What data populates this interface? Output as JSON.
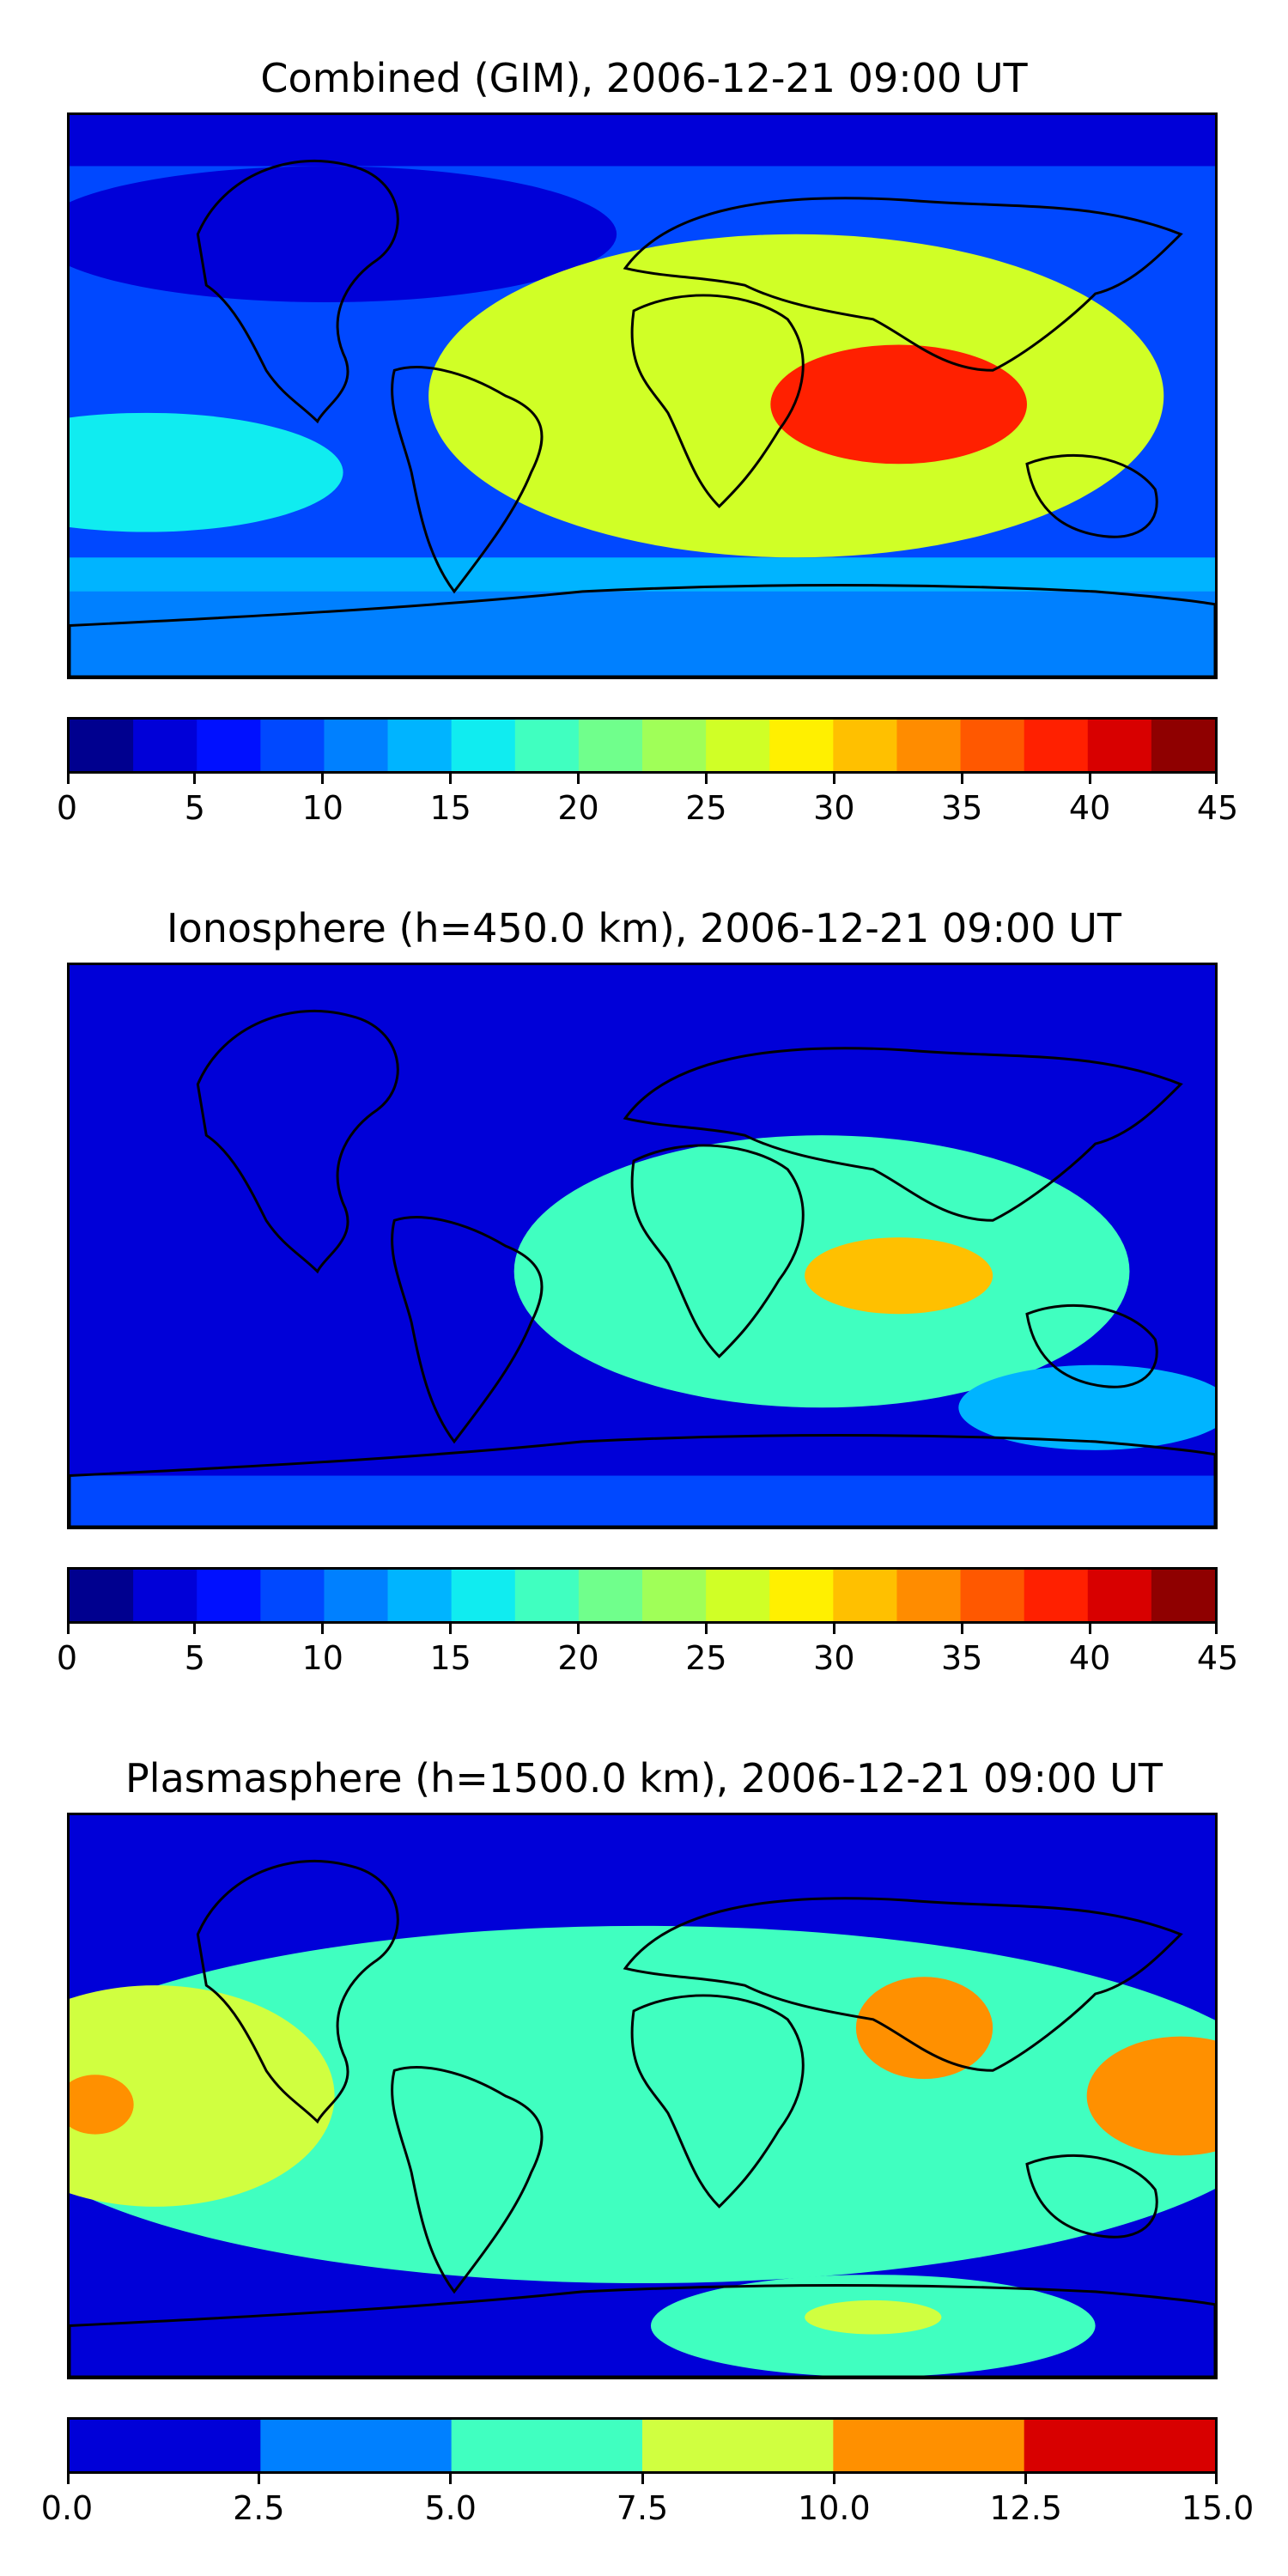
{
  "chart_data": [
    {
      "type": "heatmap",
      "title": "Combined (GIM), 2006-12-21 09:00 UT",
      "xlabel": "",
      "ylabel": "",
      "grid": false,
      "colorbar": {
        "ticks": [
          "0",
          "5",
          "10",
          "15",
          "20",
          "25",
          "30",
          "35",
          "40",
          "45"
        ],
        "range": [
          0,
          45
        ],
        "step": 2.5,
        "colors": [
          "#00008f",
          "#0000d8",
          "#0010ff",
          "#0048ff",
          "#0080ff",
          "#00b4ff",
          "#10ecf0",
          "#40ffc0",
          "#70ff8c",
          "#a0ff58",
          "#d0ff26",
          "#fff000",
          "#ffc000",
          "#ff8c00",
          "#ff5800",
          "#ff2000",
          "#d80000",
          "#8f0000"
        ]
      },
      "features": [
        {
          "region": "background",
          "value": 9
        },
        {
          "region": "north-polar",
          "value": 4
        },
        {
          "region": "africa-indian-ocean crest",
          "value": 25
        },
        {
          "region": "indian-ocean peak",
          "value": 38
        },
        {
          "region": "pacific band",
          "value": 16
        },
        {
          "region": "southern band",
          "value": 13
        },
        {
          "region": "antarctic",
          "value": 12
        }
      ]
    },
    {
      "type": "heatmap",
      "title": "Ionosphere  (h=450.0 km), 2006-12-21 09:00 UT",
      "xlabel": "",
      "ylabel": "",
      "grid": false,
      "colorbar": {
        "ticks": [
          "0",
          "5",
          "10",
          "15",
          "20",
          "25",
          "30",
          "35",
          "40",
          "45"
        ],
        "range": [
          0,
          45
        ],
        "step": 2.5,
        "colors": [
          "#00008f",
          "#0000d8",
          "#0010ff",
          "#0048ff",
          "#0080ff",
          "#00b4ff",
          "#10ecf0",
          "#40ffc0",
          "#70ff8c",
          "#a0ff58",
          "#d0ff26",
          "#fff000",
          "#ffc000",
          "#ff8c00",
          "#ff5800",
          "#ff2000",
          "#d80000",
          "#8f0000"
        ]
      },
      "features": [
        {
          "region": "background",
          "value": 4
        },
        {
          "region": "africa-indian-ocean crest",
          "value": 18
        },
        {
          "region": "indian-ocean peak",
          "value": 30
        },
        {
          "region": "south-east pacific",
          "value": 14
        },
        {
          "region": "antarctic",
          "value": 9
        }
      ]
    },
    {
      "type": "heatmap",
      "title": "Plasmasphere (h=1500.0 km), 2006-12-21 09:00 UT",
      "xlabel": "",
      "ylabel": "",
      "grid": false,
      "colorbar": {
        "ticks": [
          "0.0",
          "2.5",
          "5.0",
          "7.5",
          "10.0",
          "12.5",
          "15.0"
        ],
        "range": [
          0,
          15
        ],
        "step": 2.5,
        "colors": [
          "#0000d8",
          "#0080ff",
          "#40ffc0",
          "#d0ff40",
          "#ff9000",
          "#d80000"
        ]
      },
      "features": [
        {
          "region": "high latitudes",
          "value": 1.5
        },
        {
          "region": "low-latitude band",
          "value": 6
        },
        {
          "region": "pacific",
          "value": 9
        },
        {
          "region": "pacific peak",
          "value": 11
        },
        {
          "region": "india",
          "value": 11
        },
        {
          "region": "east of indonesia",
          "value": 11
        },
        {
          "region": "southern oval",
          "value": 6
        },
        {
          "region": "southern oval core",
          "value": 8
        }
      ]
    }
  ]
}
